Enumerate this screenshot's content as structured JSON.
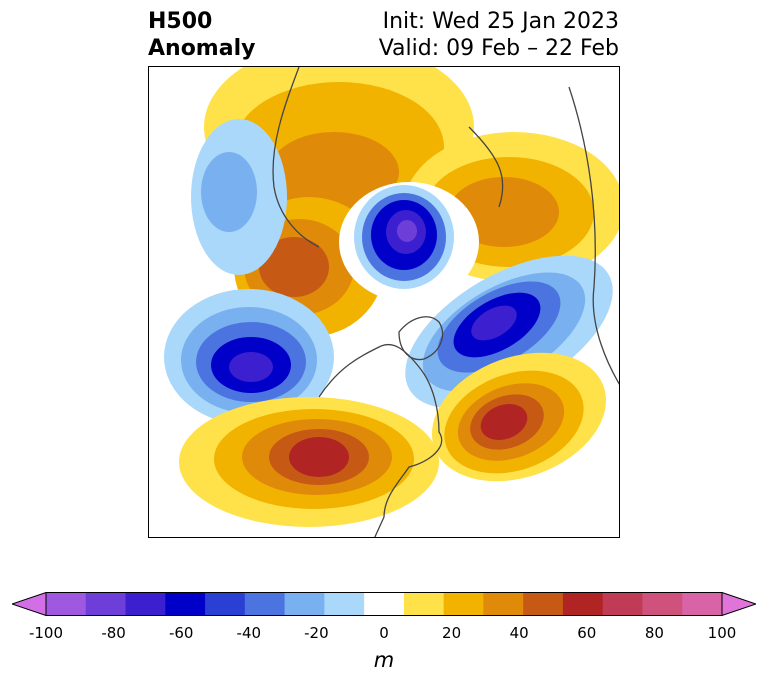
{
  "title": {
    "line1": "H500",
    "line2": "Anomaly"
  },
  "init": "Init: Wed 25 Jan 2023",
  "valid": "Valid: 09 Feb – 22 Feb",
  "colorbar": {
    "unit": "m",
    "ticks": [
      "-100",
      "-80",
      "-60",
      "-40",
      "-20",
      "0",
      "20",
      "40",
      "60",
      "80",
      "100"
    ],
    "colors": [
      "#d36fe6",
      "#9e59e0",
      "#6e3fd8",
      "#3c1fcf",
      "#0000c8",
      "#2a3fd4",
      "#4c74e0",
      "#79b0ef",
      "#aad8fa",
      "#ffffff",
      "#ffe14a",
      "#f2b300",
      "#e08a0a",
      "#c65a14",
      "#b02424",
      "#c03c56",
      "#cf527c",
      "#d863a6",
      "#e074d8"
    ]
  },
  "map": {
    "projection": "north polar stereographic",
    "anomalies": [
      {
        "region": "North Pole",
        "sign": "negative",
        "peak": -70
      },
      {
        "region": "North Pacific / Aleutians",
        "sign": "negative",
        "peak": -70
      },
      {
        "region": "North Atlantic",
        "sign": "negative",
        "peak": -60
      },
      {
        "region": "Central Asia",
        "sign": "negative",
        "peak": -30
      },
      {
        "region": "Western Russia / Europe",
        "sign": "positive",
        "peak": 40
      },
      {
        "region": "Northern Siberia",
        "sign": "positive",
        "peak": 50
      },
      {
        "region": "Southwestern United States",
        "sign": "positive",
        "peak": 60
      },
      {
        "region": "Subtropical Atlantic",
        "sign": "positive",
        "peak": 60
      }
    ]
  }
}
